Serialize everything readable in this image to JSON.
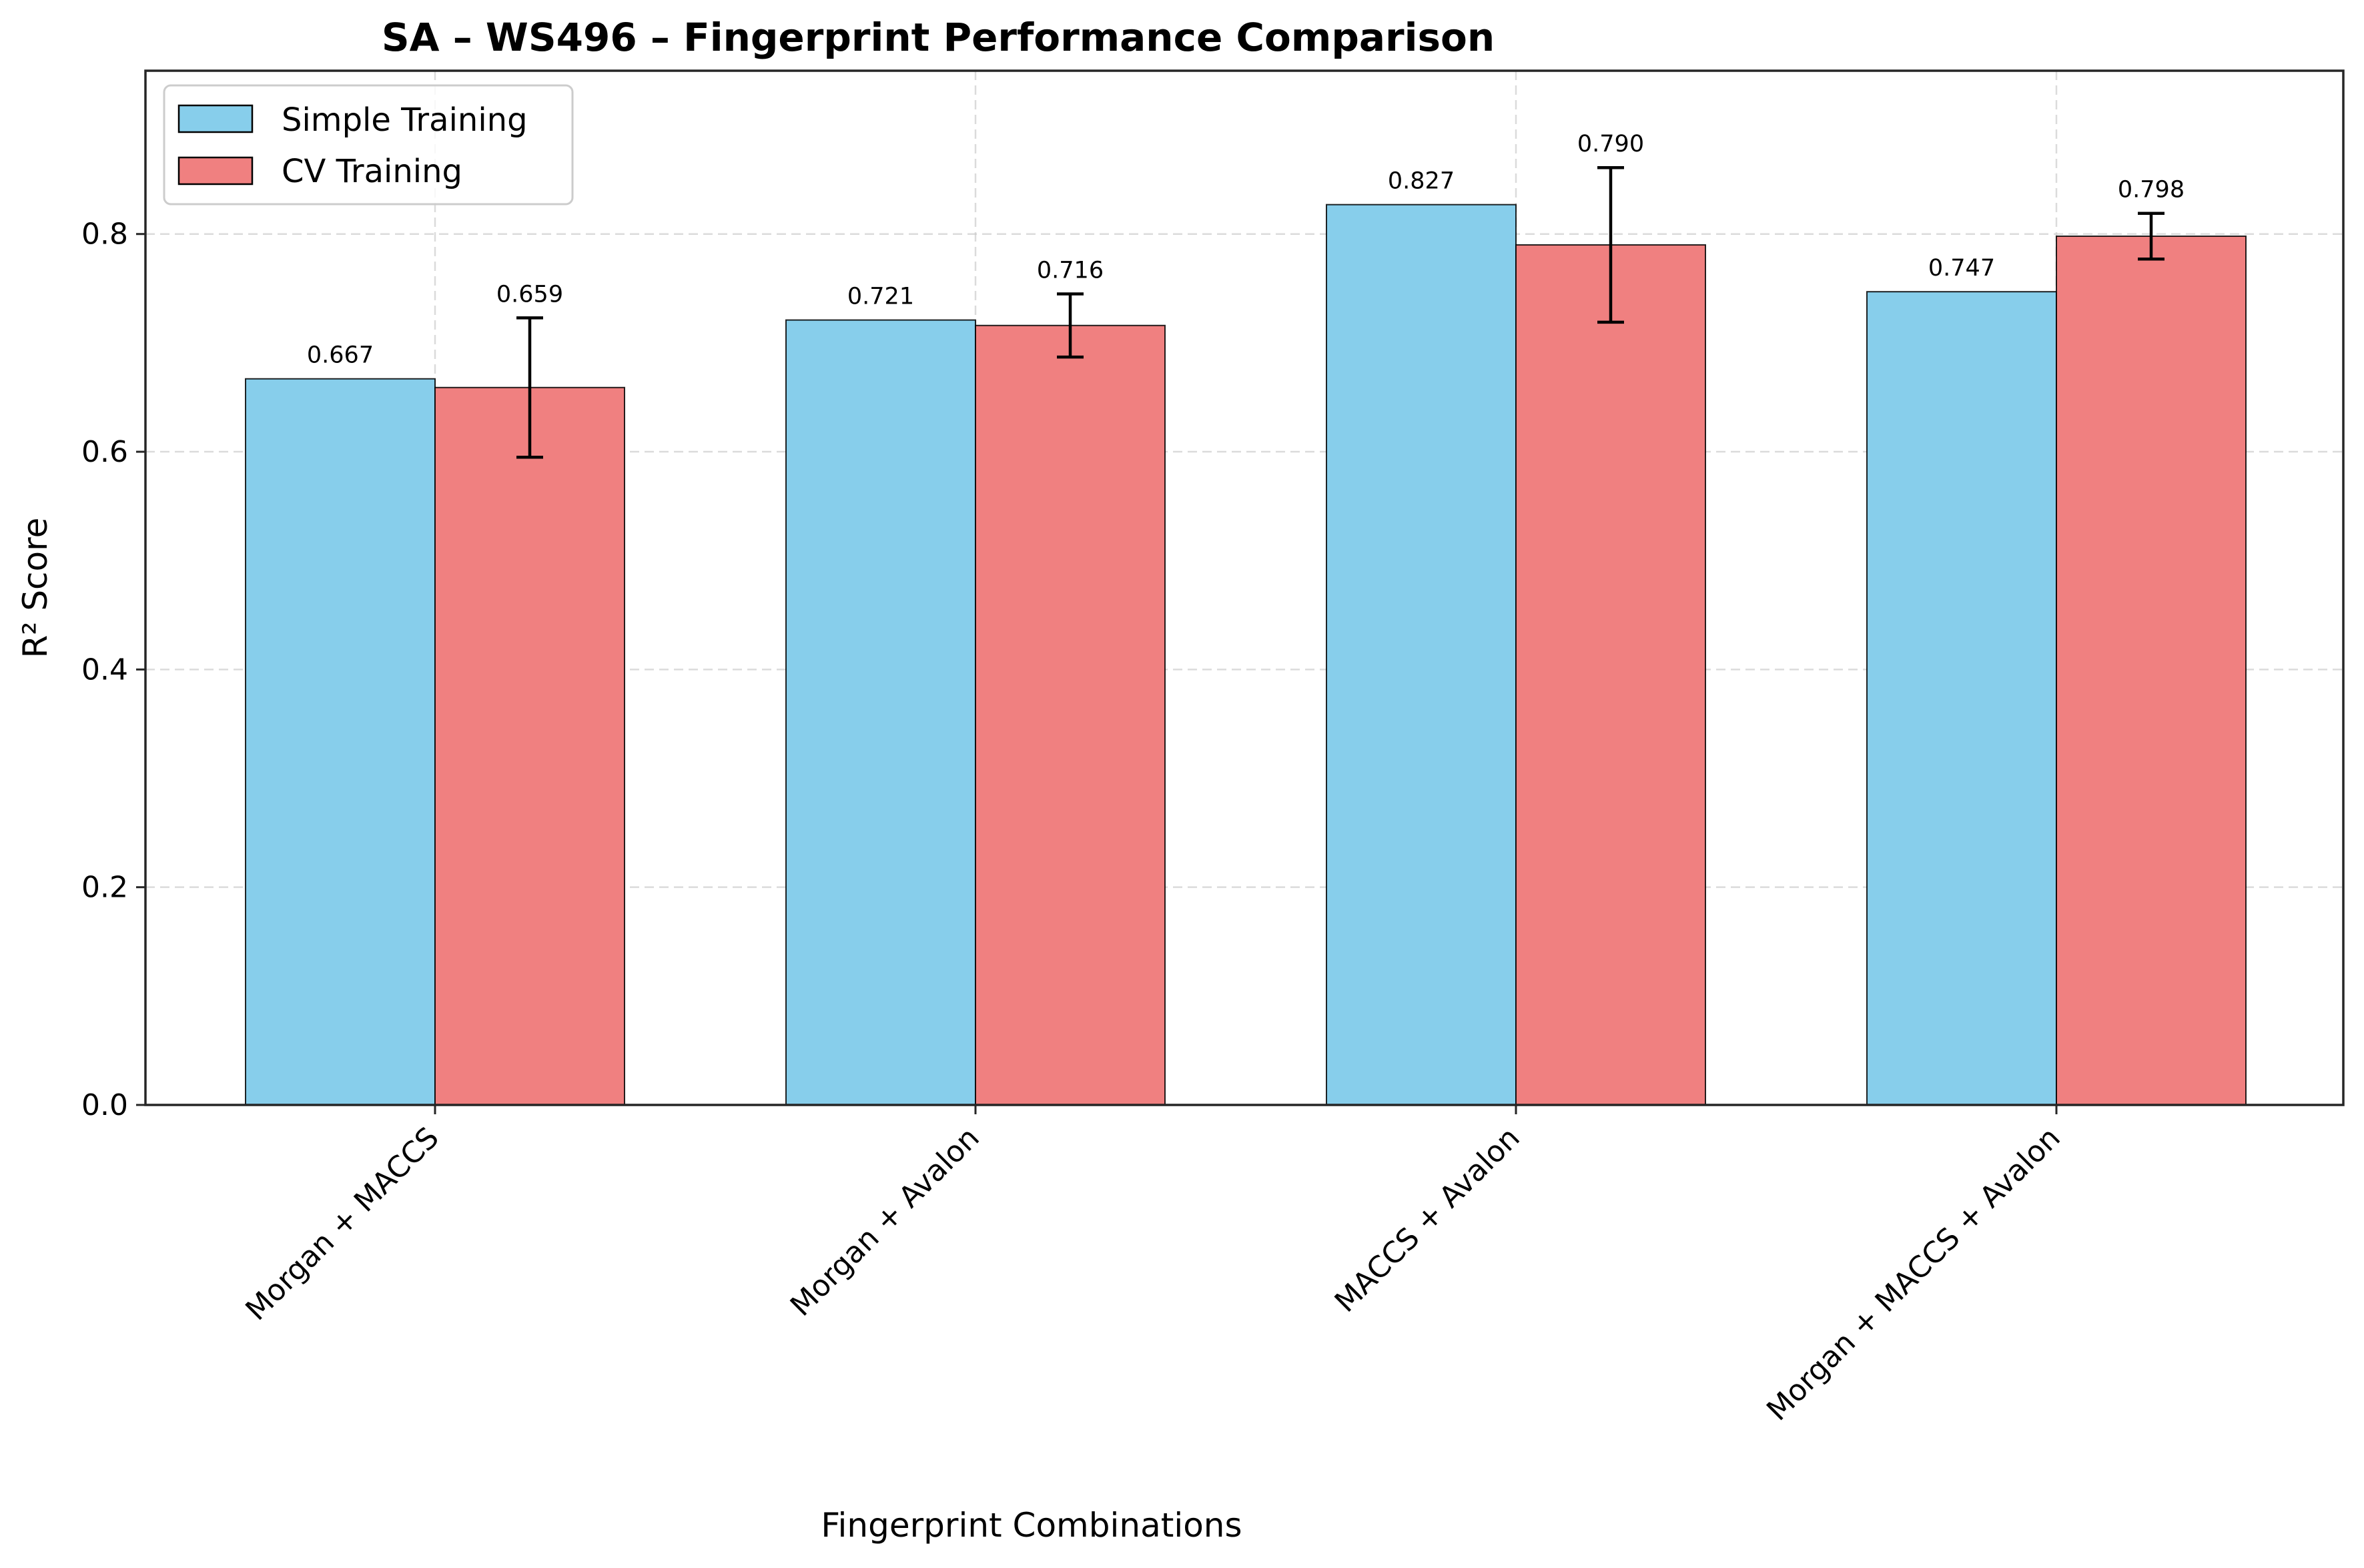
{
  "chart_data": {
    "type": "bar",
    "title": "SA – WS496 – Fingerprint Performance Comparison",
    "xlabel": "Fingerprint Combinations",
    "ylabel": "R² Score",
    "categories": [
      "Morgan + MACCS",
      "Morgan + Avalon",
      "MACCS + Avalon",
      "Morgan + MACCS + Avalon"
    ],
    "series": [
      {
        "name": "Simple Training",
        "color": "#87CEEB",
        "values": [
          0.667,
          0.721,
          0.827,
          0.747
        ],
        "labels": [
          "0.667",
          "0.721",
          "0.827",
          "0.747"
        ]
      },
      {
        "name": "CV Training",
        "color": "#F08080",
        "values": [
          0.659,
          0.716,
          0.79,
          0.798
        ],
        "labels": [
          "0.659",
          "0.716",
          "0.790",
          "0.798"
        ],
        "error": [
          0.064,
          0.029,
          0.071,
          0.021
        ]
      }
    ],
    "ylim": [
      0,
      0.95
    ],
    "yticks": [
      0.0,
      0.2,
      0.4,
      0.6,
      0.8
    ],
    "ytick_labels": [
      "0.0",
      "0.2",
      "0.4",
      "0.6",
      "0.8"
    ],
    "grid": true,
    "legend_position": "top-left"
  }
}
